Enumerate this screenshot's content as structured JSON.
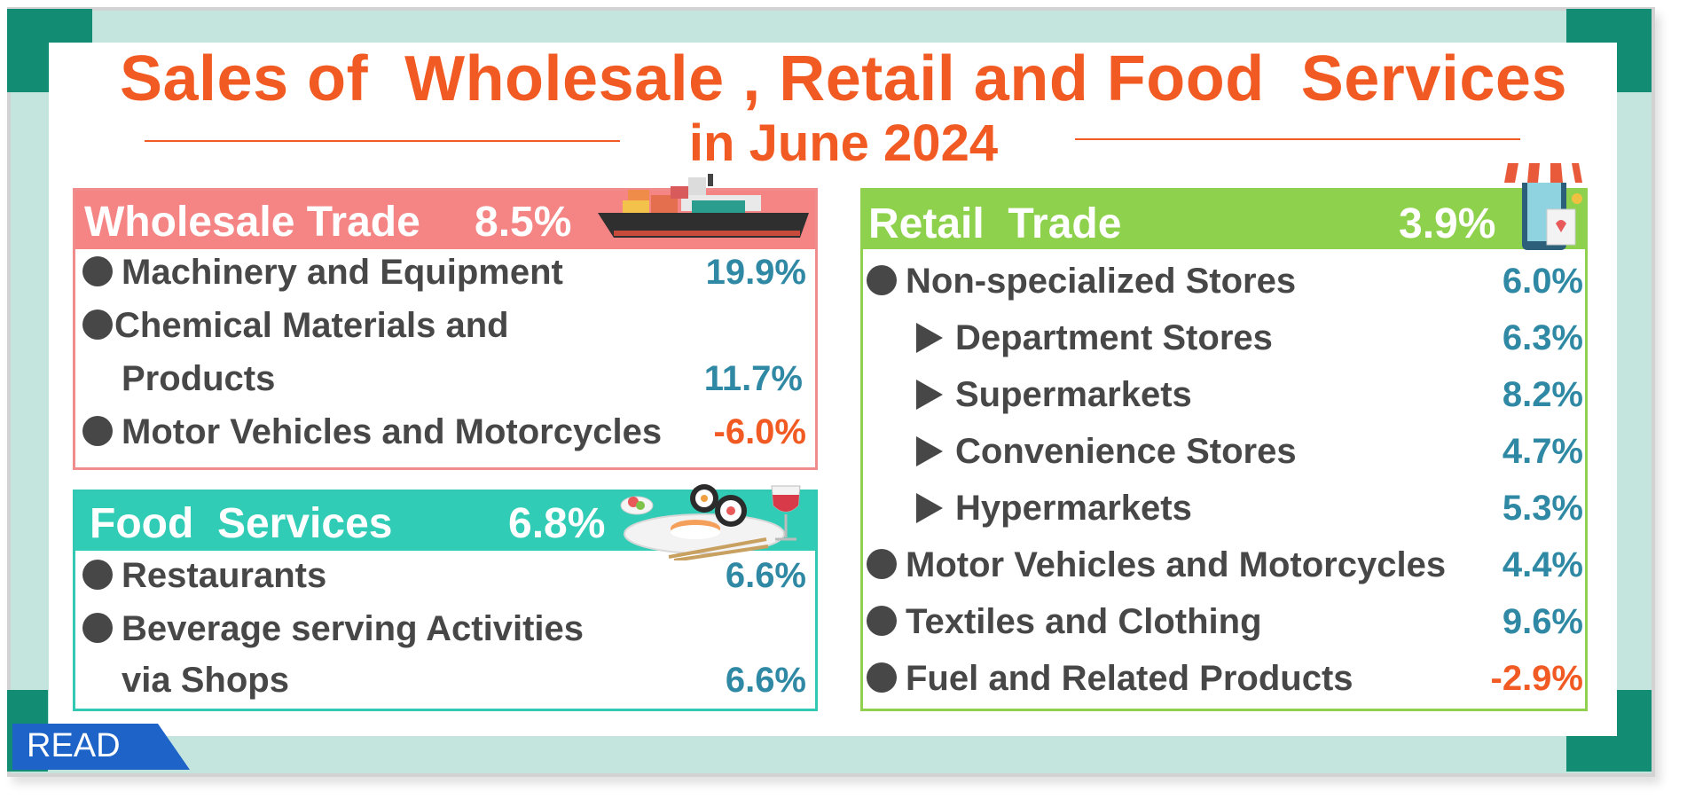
{
  "title": {
    "line1": "Sales of  Wholesale , Retail and Food  Services",
    "line2": "in June 2024"
  },
  "colors": {
    "accent_orange": "#f15a22",
    "frame_teal": "#138c74",
    "frame_bg": "#c3e5de",
    "wholesale_header": "#f58585",
    "food_header": "#30ccb6",
    "retail_header": "#8dd14c",
    "value_blue": "#2f88a4",
    "read_blue": "#1e63c8"
  },
  "wholesale": {
    "name": "Wholesale Trade",
    "pct": "8.5%",
    "items": [
      {
        "label": "Machinery and Equipment",
        "pct": "19.9%"
      },
      {
        "label_line1": "Chemical Materials and",
        "label_line2": "Products",
        "pct": "11.7%"
      },
      {
        "label": "Motor Vehicles and Motorcycles",
        "pct": "-6.0%"
      }
    ]
  },
  "food": {
    "name": "Food  Services",
    "pct": "6.8%",
    "items": [
      {
        "label": "Restaurants",
        "pct": "6.6%"
      },
      {
        "label_line1": "Beverage serving Activities",
        "label_line2": "via Shops",
        "pct": "6.6%"
      }
    ]
  },
  "retail": {
    "name": "Retail  Trade",
    "pct": "3.9%",
    "items": [
      {
        "label": "Non-specialized Stores",
        "pct": "6.0%"
      },
      {
        "label": "Department Stores",
        "pct": "6.3%"
      },
      {
        "label": "Supermarkets",
        "pct": "8.2%"
      },
      {
        "label": "Convenience Stores",
        "pct": "4.7%"
      },
      {
        "label": "Hypermarkets",
        "pct": "5.3%"
      },
      {
        "label": "Motor Vehicles and Motorcycles",
        "pct": "4.4%"
      },
      {
        "label": "Textiles and Clothing",
        "pct": "9.6%"
      },
      {
        "label": "Fuel and Related Products",
        "pct": "-2.9%"
      }
    ]
  },
  "read_label": "READ",
  "icons": [
    "cargo-ship-icon",
    "sushi-plate-icon",
    "wine-glass-icon",
    "shopping-phone-icon"
  ]
}
